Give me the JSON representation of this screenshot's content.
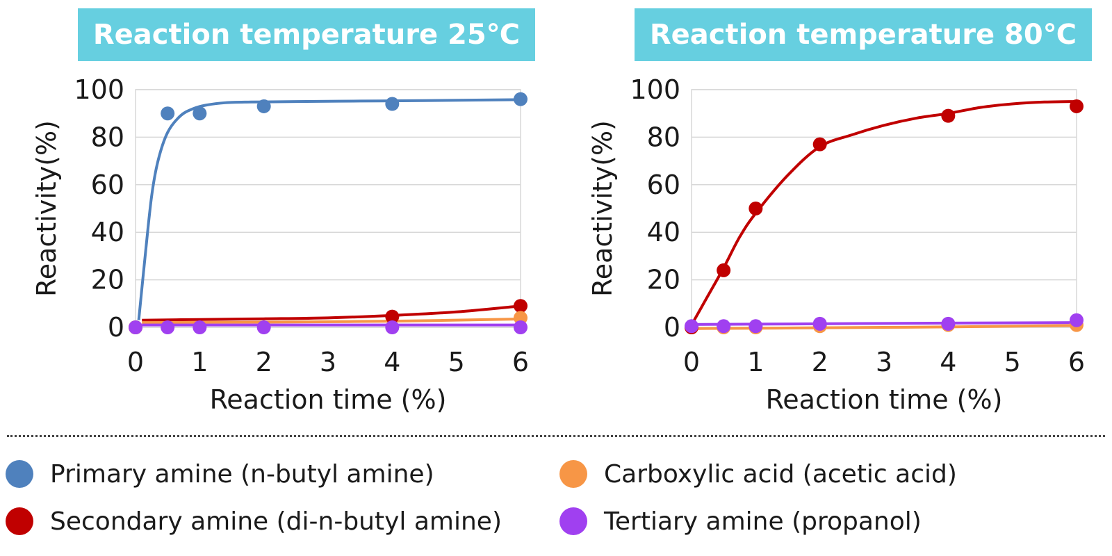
{
  "legend": [
    {
      "label": "Primary amine (n-butyl amine)",
      "color": "#4f81bd"
    },
    {
      "label": "Carboxylic acid (acetic acid)",
      "color": "#f79646"
    },
    {
      "label": "Secondary amine (di-n-butyl amine)",
      "color": "#c00000"
    },
    {
      "label": "Tertiary amine (propanol)",
      "color": "#a040f0"
    }
  ],
  "chart_data": [
    {
      "type": "scatter",
      "title": "Reaction temperature 25℃",
      "xlabel": "Reaction time (%)",
      "ylabel": "Reactivity(%)",
      "xlim": [
        0,
        6
      ],
      "ylim": [
        0,
        100
      ],
      "xticks": [
        "0",
        "1",
        "2",
        "3",
        "4",
        "5",
        "6"
      ],
      "yticks": [
        "0",
        "20",
        "40",
        "60",
        "80",
        "100"
      ],
      "series": [
        {
          "name": "Primary amine (n-butyl amine)",
          "color": "#4f81bd",
          "x": [
            0,
            0.5,
            1,
            2,
            4,
            6
          ],
          "y": [
            0,
            90,
            90,
            93,
            94,
            96
          ],
          "curve_x": [
            0.05,
            0.15,
            0.25,
            0.35,
            0.5,
            0.7,
            0.9,
            1.1,
            1.4,
            1.8,
            2.5,
            3.5,
            4.5,
            6
          ],
          "curve_y": [
            3,
            30,
            55,
            70,
            82,
            89,
            92,
            93.5,
            94.5,
            94.8,
            95,
            95.2,
            95.4,
            95.8
          ]
        },
        {
          "name": "Secondary amine (di-n-butyl amine)",
          "color": "#c00000",
          "x": [
            0,
            4,
            6
          ],
          "y": [
            0,
            4.5,
            9
          ],
          "curve_x": [
            0.1,
            1,
            2,
            3,
            4,
            5,
            6
          ],
          "curve_y": [
            3,
            3.3,
            3.6,
            4,
            5,
            6.5,
            9
          ]
        },
        {
          "name": "Carboxylic acid (acetic acid)",
          "color": "#f79646",
          "x": [
            0,
            6
          ],
          "y": [
            0,
            4
          ],
          "curve_x": [
            0.1,
            2,
            4,
            6
          ],
          "curve_y": [
            2,
            2.2,
            2.6,
            3.5
          ]
        },
        {
          "name": "Tertiary amine (propanol)",
          "color": "#a040f0",
          "x": [
            0,
            0.5,
            1,
            2,
            4,
            6
          ],
          "y": [
            0,
            0,
            0,
            0,
            0,
            0
          ],
          "curve_x": [
            0.1,
            2,
            4,
            6
          ],
          "curve_y": [
            1,
            1,
            1,
            1
          ]
        }
      ]
    },
    {
      "type": "scatter",
      "title": "Reaction temperature 80℃",
      "xlabel": "Reaction time (%)",
      "ylabel": "Reactivity(%)",
      "xlim": [
        0,
        6
      ],
      "ylim": [
        0,
        100
      ],
      "xticks": [
        "0",
        "1",
        "2",
        "3",
        "4",
        "5",
        "6"
      ],
      "yticks": [
        "0",
        "20",
        "40",
        "60",
        "80",
        "100"
      ],
      "series": [
        {
          "name": "Carboxylic acid (acetic acid)",
          "color": "#f79646",
          "x": [
            0,
            0.5,
            1,
            2,
            4,
            6
          ],
          "y": [
            0,
            0,
            0,
            0.5,
            1,
            1
          ],
          "curve_x": [
            0.1,
            2,
            4,
            6
          ],
          "curve_y": [
            -0.5,
            -0.2,
            0.2,
            0.8
          ]
        },
        {
          "name": "Secondary amine (di-n-butyl amine)",
          "color": "#c00000",
          "x": [
            0,
            0.5,
            1,
            2,
            4,
            6
          ],
          "y": [
            0,
            24,
            50,
            77,
            89,
            93
          ],
          "curve_x": [
            0,
            0.25,
            0.5,
            0.75,
            1,
            1.5,
            2,
            2.5,
            3,
            3.5,
            4,
            4.5,
            5,
            5.5,
            6
          ],
          "curve_y": [
            1,
            13,
            25,
            38,
            48,
            64,
            76,
            81,
            85,
            88,
            90,
            92.5,
            94,
            94.8,
            95
          ]
        },
        {
          "name": "Tertiary amine (propanol)",
          "color": "#a040f0",
          "x": [
            0,
            0.5,
            1,
            2,
            4,
            6
          ],
          "y": [
            0.5,
            0.5,
            0.5,
            1.5,
            1.5,
            3
          ],
          "curve_x": [
            0,
            2,
            4,
            6
          ],
          "curve_y": [
            1.2,
            1.5,
            1.8,
            2
          ]
        }
      ]
    }
  ]
}
